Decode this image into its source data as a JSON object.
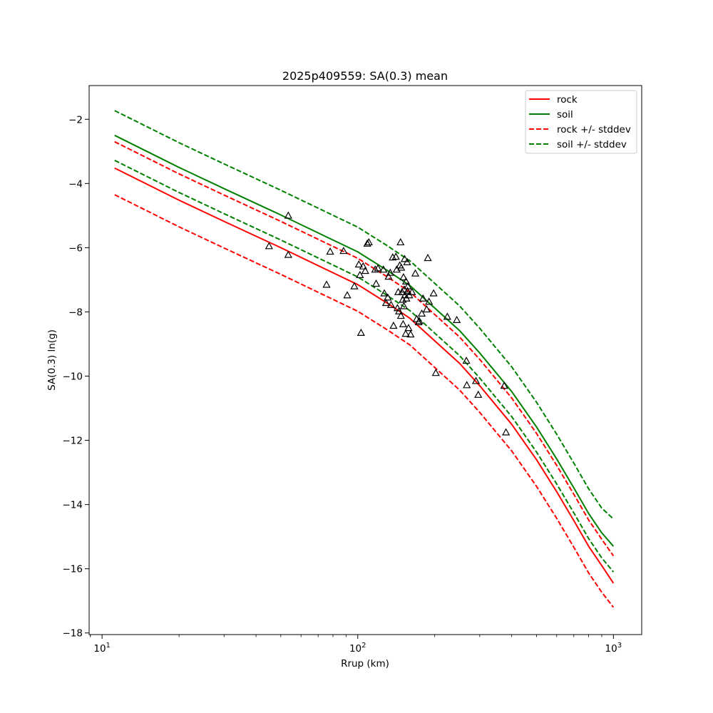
{
  "chart_data": {
    "type": "line",
    "title": "2025p409559: SA(0.3) mean",
    "xlabel": "Rrup (km)",
    "ylabel": "SA(0.3) ln(g)",
    "xscale": "log",
    "xlim": [
      8.9,
      1290
    ],
    "ylim": [
      -18.05,
      -0.95
    ],
    "x_ticks": [
      {
        "value": 10,
        "base": "10",
        "exp": "1"
      },
      {
        "value": 100,
        "base": "10",
        "exp": "2"
      },
      {
        "value": 1000,
        "base": "10",
        "exp": "3"
      }
    ],
    "y_ticks": [
      {
        "value": -2,
        "label": "−2"
      },
      {
        "value": -4,
        "label": "−4"
      },
      {
        "value": -6,
        "label": "−6"
      },
      {
        "value": -8,
        "label": "−8"
      },
      {
        "value": -10,
        "label": "−10"
      },
      {
        "value": -12,
        "label": "−12"
      },
      {
        "value": -14,
        "label": "−14"
      },
      {
        "value": -16,
        "label": "−16"
      },
      {
        "value": -18,
        "label": "−18"
      }
    ],
    "grid": false,
    "legend_position": "top-right",
    "series": [
      {
        "name": "rock",
        "style": "solid",
        "color": "#ff0000",
        "x": [
          11.2,
          20,
          30,
          50,
          80,
          100,
          130,
          160,
          200,
          250,
          300,
          400,
          500,
          600,
          700,
          800,
          900,
          1000
        ],
        "y": [
          -3.52,
          -4.52,
          -5.18,
          -6.0,
          -6.78,
          -7.15,
          -7.72,
          -8.2,
          -8.9,
          -9.6,
          -10.3,
          -11.5,
          -12.6,
          -13.6,
          -14.5,
          -15.3,
          -15.9,
          -16.45
        ]
      },
      {
        "name": "soil",
        "style": "solid",
        "color": "#008000",
        "x": [
          11.2,
          20,
          30,
          50,
          80,
          100,
          130,
          160,
          200,
          250,
          300,
          400,
          500,
          600,
          700,
          800,
          900,
          1000
        ],
        "y": [
          -2.5,
          -3.5,
          -4.16,
          -4.98,
          -5.76,
          -6.13,
          -6.7,
          -7.18,
          -7.88,
          -8.58,
          -9.28,
          -10.48,
          -11.58,
          -12.58,
          -13.48,
          -14.28,
          -14.88,
          -15.3
        ]
      },
      {
        "name": "rock +/- stddev",
        "style": "dashed",
        "color": "#ff0000",
        "x": [
          11.2,
          20,
          30,
          50,
          80,
          100,
          130,
          160,
          200,
          250,
          300,
          400,
          500,
          600,
          700,
          800,
          900,
          1000
        ],
        "y": [
          -2.7,
          -3.7,
          -4.36,
          -5.18,
          -5.96,
          -6.33,
          -6.9,
          -7.38,
          -8.08,
          -8.78,
          -9.48,
          -10.68,
          -11.78,
          -12.78,
          -13.68,
          -14.48,
          -15.08,
          -15.6
        ]
      },
      {
        "name": "",
        "style": "dashed",
        "color": "#ff0000",
        "x": [
          11.2,
          20,
          30,
          50,
          80,
          100,
          130,
          160,
          200,
          250,
          300,
          400,
          500,
          600,
          700,
          800,
          900,
          1000
        ],
        "y": [
          -4.35,
          -5.35,
          -6.01,
          -6.83,
          -7.61,
          -7.98,
          -8.55,
          -9.03,
          -9.73,
          -10.43,
          -11.13,
          -12.33,
          -13.43,
          -14.43,
          -15.33,
          -16.13,
          -16.73,
          -17.2
        ]
      },
      {
        "name": "soil +/- stddev",
        "style": "dashed",
        "color": "#008000",
        "x": [
          11.2,
          20,
          30,
          50,
          80,
          100,
          130,
          160,
          200,
          250,
          300,
          400,
          500,
          600,
          700,
          800,
          900,
          1000
        ],
        "y": [
          -1.73,
          -2.73,
          -3.39,
          -4.21,
          -4.99,
          -5.36,
          -5.93,
          -6.41,
          -7.11,
          -7.81,
          -8.51,
          -9.71,
          -10.81,
          -11.81,
          -12.71,
          -13.51,
          -14.11,
          -14.45
        ]
      },
      {
        "name": "",
        "style": "dashed",
        "color": "#008000",
        "x": [
          11.2,
          20,
          30,
          50,
          80,
          100,
          130,
          160,
          200,
          250,
          300,
          400,
          500,
          600,
          700,
          800,
          900,
          1000
        ],
        "y": [
          -3.28,
          -4.28,
          -4.94,
          -5.76,
          -6.54,
          -6.91,
          -7.48,
          -7.96,
          -8.66,
          -9.36,
          -10.06,
          -11.26,
          -12.36,
          -13.36,
          -14.26,
          -15.06,
          -15.66,
          -16.1
        ]
      }
    ],
    "observations": {
      "marker": "triangle",
      "color": "#000000",
      "points": [
        [
          45,
          -5.95
        ],
        [
          53.5,
          -5.0
        ],
        [
          53.5,
          -6.22
        ],
        [
          75.5,
          -7.15
        ],
        [
          78,
          -6.12
        ],
        [
          88,
          -6.1
        ],
        [
          91,
          -7.48
        ],
        [
          97,
          -7.2
        ],
        [
          101,
          -6.52
        ],
        [
          102,
          -6.85
        ],
        [
          103,
          -8.65
        ],
        [
          105,
          -6.58
        ],
        [
          107,
          -6.72
        ],
        [
          109,
          -5.87
        ],
        [
          110.5,
          -5.83
        ],
        [
          117,
          -6.68
        ],
        [
          118,
          -7.12
        ],
        [
          120,
          -6.64
        ],
        [
          126,
          -6.68
        ],
        [
          127,
          -7.42
        ],
        [
          129,
          -7.72
        ],
        [
          131,
          -7.55
        ],
        [
          132,
          -6.9
        ],
        [
          134,
          -6.78
        ],
        [
          135,
          -7.78
        ],
        [
          137,
          -6.3
        ],
        [
          138,
          -8.43
        ],
        [
          141,
          -6.28
        ],
        [
          142,
          -6.68
        ],
        [
          143,
          -7.88
        ],
        [
          144,
          -7.38
        ],
        [
          145,
          -7.98
        ],
        [
          146,
          -6.55
        ],
        [
          147,
          -5.83
        ],
        [
          147.5,
          -8.12
        ],
        [
          148,
          -6.62
        ],
        [
          149,
          -7.38
        ],
        [
          150,
          -7.62
        ],
        [
          150.5,
          -8.38
        ],
        [
          151,
          -6.92
        ],
        [
          151.5,
          -7.82
        ],
        [
          152,
          -7.3
        ],
        [
          152.5,
          -6.35
        ],
        [
          153,
          -7.48
        ],
        [
          154,
          -8.68
        ],
        [
          154.5,
          -7.05
        ],
        [
          155,
          -7.58
        ],
        [
          156,
          -6.45
        ],
        [
          156.5,
          -7.35
        ],
        [
          157,
          -7.2
        ],
        [
          158,
          -8.5
        ],
        [
          159,
          -7.48
        ],
        [
          161,
          -8.7
        ],
        [
          163,
          -7.38
        ],
        [
          168,
          -6.8
        ],
        [
          170,
          -8.22
        ],
        [
          173,
          -8.32
        ],
        [
          174,
          -8.28
        ],
        [
          178,
          -8.05
        ],
        [
          180,
          -7.58
        ],
        [
          186,
          -7.92
        ],
        [
          188,
          -6.32
        ],
        [
          190,
          -7.68
        ],
        [
          198,
          -7.42
        ],
        [
          202,
          -9.9
        ],
        [
          224,
          -8.15
        ],
        [
          244,
          -8.25
        ],
        [
          266,
          -9.52
        ],
        [
          267,
          -10.28
        ],
        [
          290,
          -10.15
        ],
        [
          296,
          -10.58
        ],
        [
          374,
          -10.3
        ],
        [
          380,
          -11.75
        ]
      ]
    }
  }
}
